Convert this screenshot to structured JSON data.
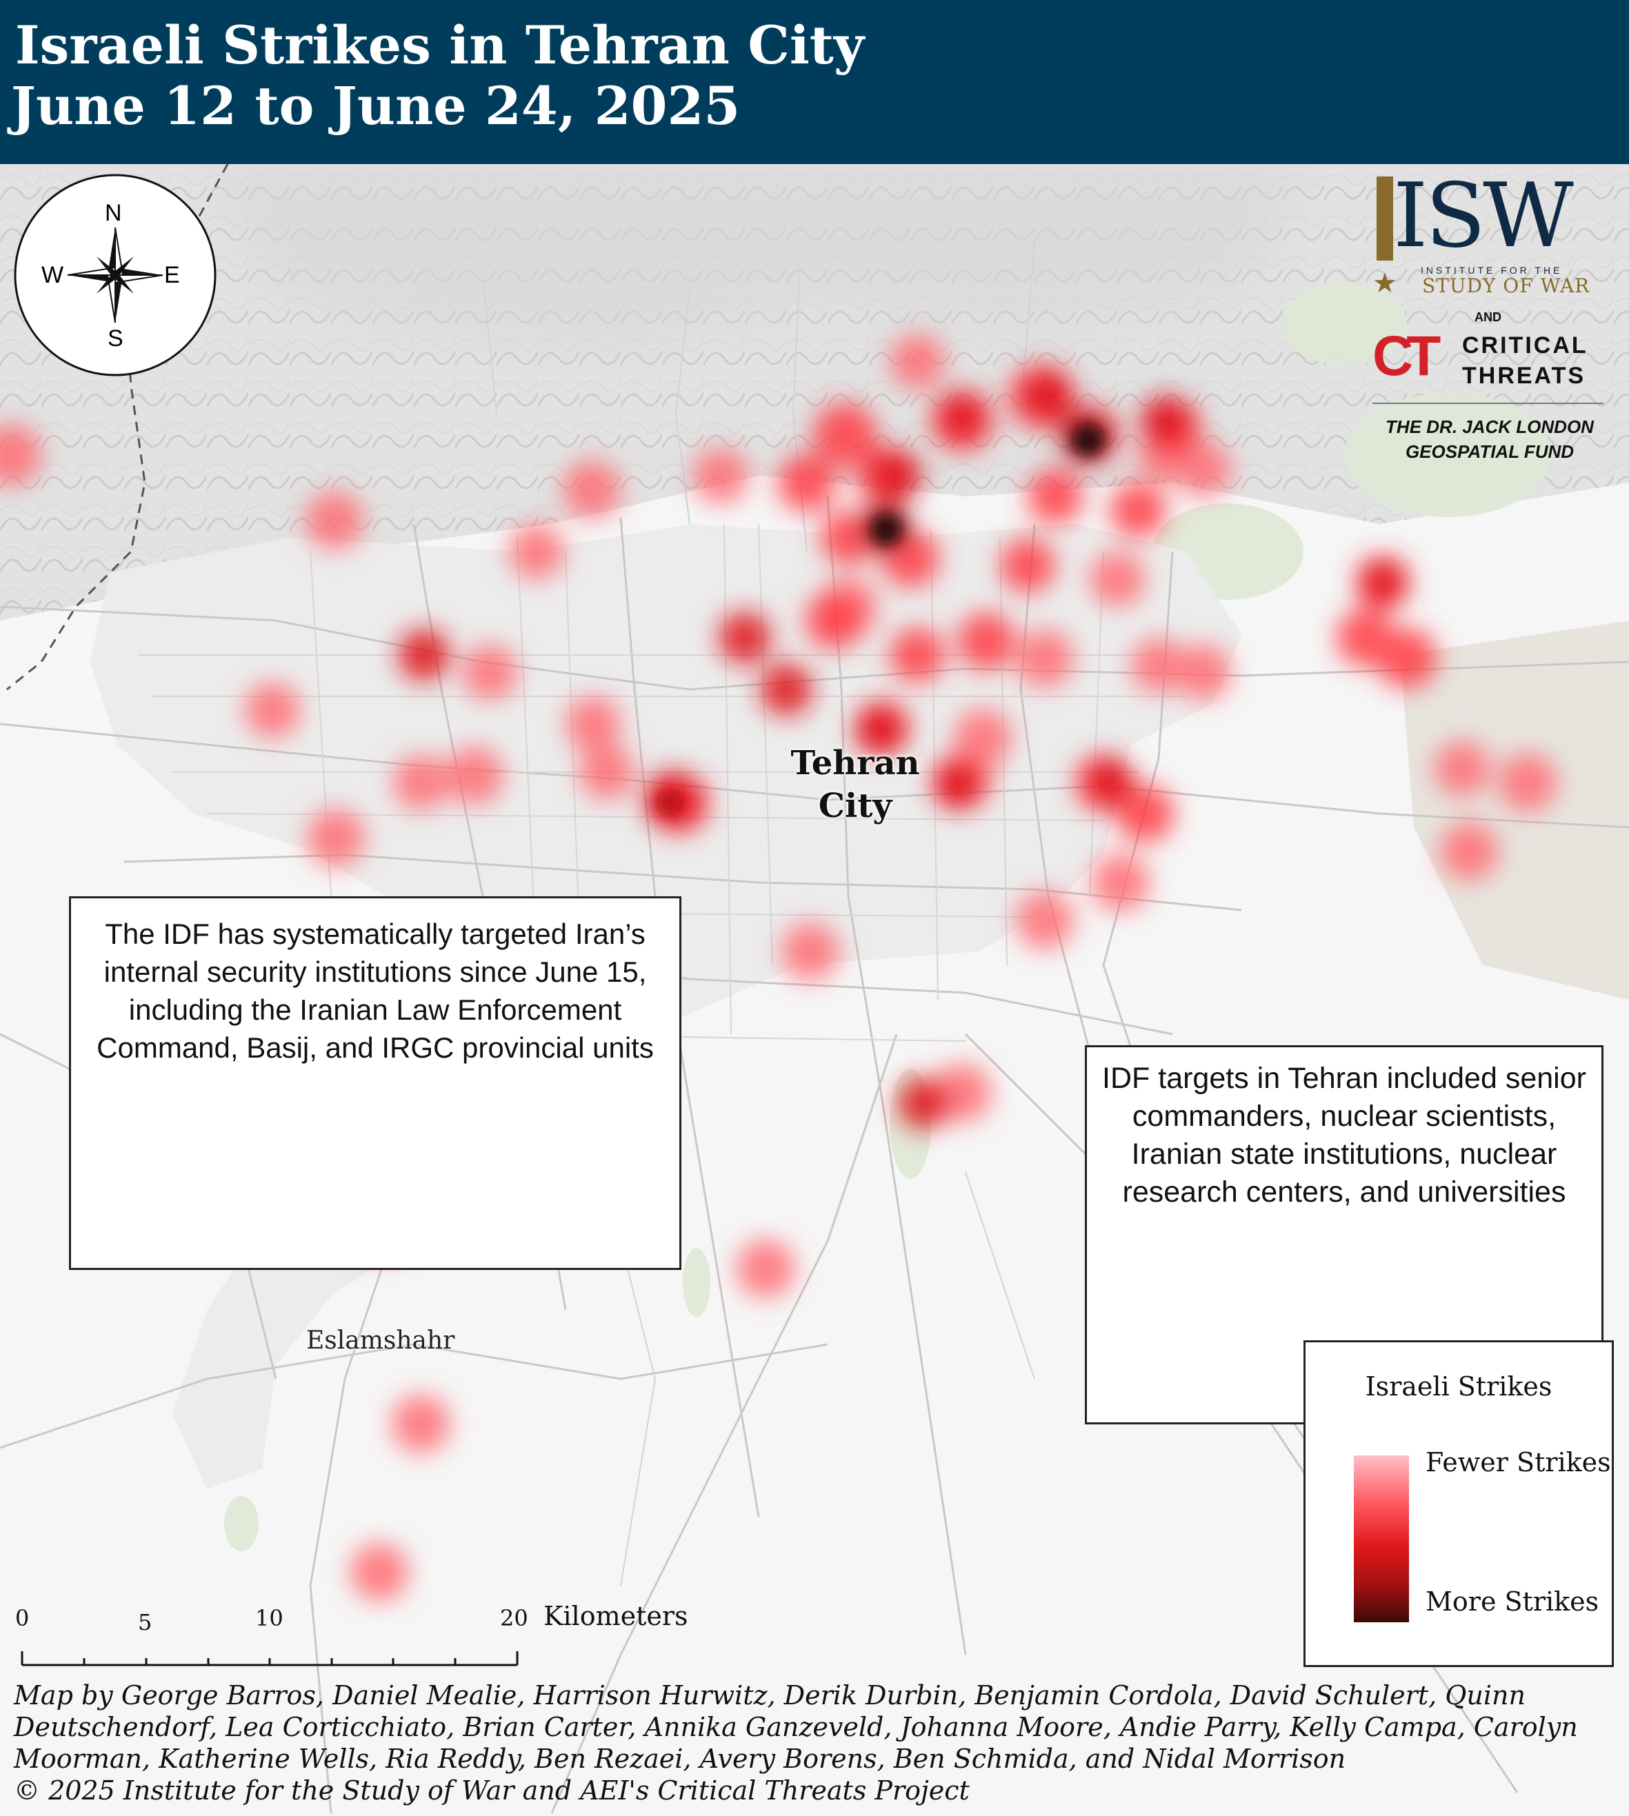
{
  "header": {
    "title_line1": "Israeli Strikes in Tehran City",
    "title_line2": "June 12 to June 24, 2025"
  },
  "map": {
    "city_label_line1": "Tehran",
    "city_label_line2": "City",
    "place_eslamshahr": "Eslamshahr",
    "compass": {
      "n": "N",
      "s": "S",
      "e": "E",
      "w": "W"
    },
    "strike_color_light": "#ff6b74",
    "strike_color_dense": "#2a0a0a"
  },
  "annotations": {
    "left_box": "The IDF has systematically targeted Iran’s internal security institutions since June 15, including the Iranian Law Enforcement Command, Basij, and IRGC provincial units",
    "right_box": "IDF targets in Tehran included senior commanders, nuclear scientists, Iranian state institutions, nuclear research centers, and universities"
  },
  "legend": {
    "title": "Israeli Strikes",
    "fewer": "Fewer Strikes",
    "more": "More Strikes"
  },
  "scale_bar": {
    "ticks": [
      "0",
      "5",
      "10",
      "20"
    ],
    "unit": "Kilometers"
  },
  "logos": {
    "isw": "ISW",
    "isw_sub1": "INSTITUTE FOR THE",
    "isw_sub2": "STUDY OF WAR",
    "and": "AND",
    "ct_mark": "CT",
    "ct_line1": "CRITICAL",
    "ct_line2": "THREATS",
    "fund_line1": "THE DR. JACK LONDON",
    "fund_line2": "GEOSPATIAL FUND"
  },
  "credits": {
    "line1": "Map by George Barros, Daniel Mealie, Harrison Hurwitz, Derik Durbin, Benjamin Cordola, David Schulert, Quinn",
    "line2": "Deutschendorf, Lea Corticchiato, Brian Carter, Annika Ganzeveld, Johanna Moore, Andie Parry, Kelly Campa, Carolyn",
    "line3": "Moorman, Katherine Wells, Ria Reddy, Ben Rezaei, Avery Borens, Ben Schmida, and Nidal Morrison",
    "line4": "© 2025 Institute for the Study of War and AEI's Critical Threats Project"
  }
}
